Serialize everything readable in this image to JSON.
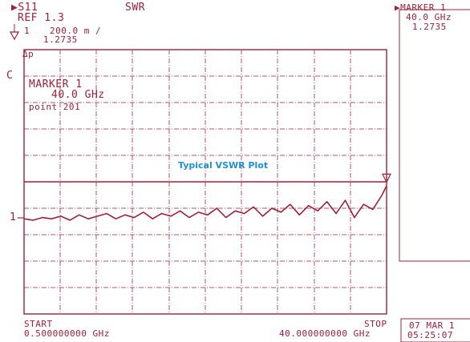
{
  "header": {
    "param": "▶S11",
    "format": "SWR",
    "ref": "REF 1.3",
    "scale_prefix": "1",
    "scale": "200.0 m /",
    "ref_marker_value": "1.2735",
    "delta_label": "Δp"
  },
  "channel_label": "C",
  "marker_box": {
    "title": "MARKER 1",
    "freq": "40.0 GHz",
    "point": "point 201"
  },
  "side_marker": {
    "title": "▶MARKER 1",
    "freq": "40.0 GHz",
    "value": "1.2735"
  },
  "caption": "Typical VSWR Plot",
  "ref_line_label": "1",
  "footer": {
    "start_label": "START",
    "start_value": "0.500000000 GHz",
    "stop_label": "STOP",
    "stop_value": "40.000000000 GHz",
    "date": "07 MAR 1",
    "time": "05:25:07"
  },
  "colors": {
    "ink": "#a0203a",
    "caption": "#1f8fd6"
  },
  "chart_data": {
    "type": "line",
    "x_range_ghz": [
      0.5,
      40.0
    ],
    "y_ref": 1.3,
    "y_scale_per_div": 0.2,
    "series": [
      {
        "x": [
          0.5,
          1.5,
          2.5,
          3.5,
          4.5,
          5.5,
          6.5,
          7.5,
          8.5,
          9.5,
          10.5,
          11.5,
          12.5,
          13.5,
          14.5,
          15.5,
          16.5,
          17.5,
          18.5,
          19.5,
          20.5,
          21.5,
          22.5,
          23.5,
          24.5,
          25.5,
          26.5,
          27.5,
          28.5,
          29.5,
          30.5,
          31.5,
          32.5,
          33.5,
          34.5,
          35.5,
          36.5,
          37.5,
          38.5,
          39.5,
          40.0
        ],
        "y": [
          1.02,
          1.01,
          1.03,
          1.02,
          1.04,
          1.01,
          1.05,
          1.02,
          1.04,
          1.06,
          1.02,
          1.05,
          1.03,
          1.07,
          1.02,
          1.06,
          1.04,
          1.08,
          1.03,
          1.07,
          1.05,
          1.1,
          1.03,
          1.08,
          1.06,
          1.11,
          1.04,
          1.1,
          1.07,
          1.13,
          1.05,
          1.12,
          1.08,
          1.15,
          1.06,
          1.16,
          1.03,
          1.13,
          1.09,
          1.2,
          1.27
        ]
      }
    ],
    "marker": {
      "x": 40.0,
      "y": 1.2735
    }
  }
}
